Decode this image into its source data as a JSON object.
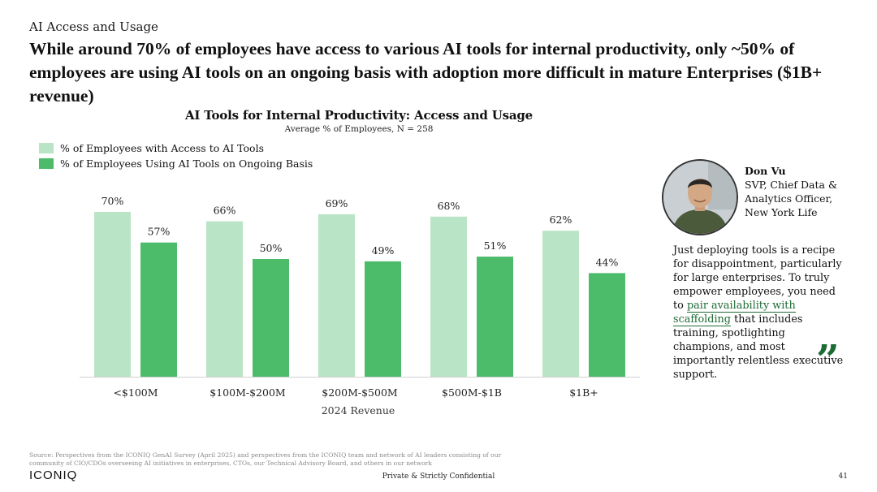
{
  "slide": {
    "eyebrow": "AI Access and Usage",
    "headline": "While around 70% of employees have access to various AI tools for internal productivity, only ~50% of employees are using AI tools on an ongoing basis with adoption more difficult in mature Enterprises ($1B+ revenue)"
  },
  "chart_data": {
    "type": "bar",
    "title": "AI Tools for Internal Productivity: Access and Usage",
    "subtitle": "Average % of Employees, N = 258",
    "xlabel": "2024 Revenue",
    "ylabel": "",
    "ylim": [
      0,
      80
    ],
    "grid": false,
    "legend_position": "top-left",
    "categories": [
      "<$100M",
      "$100M-$200M",
      "$200M-$500M",
      "$500M-$1B",
      "$1B+"
    ],
    "series": [
      {
        "name": "% of Employees with Access to AI Tools",
        "values": [
          70,
          66,
          69,
          68,
          62
        ],
        "labels": [
          "70%",
          "66%",
          "69%",
          "68%",
          "62%"
        ],
        "color": "#b9e4c5"
      },
      {
        "name": "% of Employees Using AI Tools on Ongoing Basis",
        "values": [
          57,
          50,
          49,
          51,
          44
        ],
        "labels": [
          "57%",
          "50%",
          "49%",
          "51%",
          "44%"
        ],
        "color": "#4cbb6a"
      }
    ]
  },
  "quote": {
    "name": "Don Vu",
    "title_line1": "SVP, Chief Data &",
    "title_line2": "Analytics Officer,",
    "title_line3": "New York Life",
    "text_before": "Just deploying tools is a recipe for disappointment, particularly for large enterprises. To truly empower employees, you need to",
    "text_highlight": "pair availability with scaffolding",
    "text_after": "that includes training, spotlighting champions, and most importantly relentless executive support.",
    "mark": "”",
    "accent_color": "#1d6b35"
  },
  "footer": {
    "source": "Source: Perspectives from the ICONIQ GenAI Survey (April 2025) and perspectives from the ICONIQ team and network of AI leaders consisting of our community of CIO/CDOs overseeing AI initiatives in enterprises, CTOs, our Technical Advisory Board, and others in our network",
    "logo": "ICONIQ",
    "confidential": "Private & Strictly Confidential",
    "page_number": "41"
  }
}
